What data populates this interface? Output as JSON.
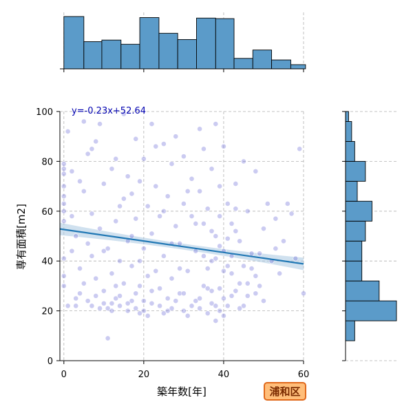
{
  "chart_data": {
    "type": "scatter",
    "xlabel": "築年数[年]",
    "ylabel": "専有面積[m2]",
    "xlim": [
      -1,
      60
    ],
    "ylim": [
      0,
      100
    ],
    "x_ticks": [
      0,
      20,
      40,
      60
    ],
    "y_ticks": [
      0,
      20,
      40,
      60,
      80,
      100
    ],
    "grid": true,
    "regression": {
      "label": "y=-0.23x+52.64",
      "slope": -0.23,
      "intercept": 52.64,
      "x_range": [
        -1,
        60
      ],
      "ci_halfwidth_ends": 2.5,
      "ci_halfwidth_mid": 1.2
    },
    "badge_label": "浦和区",
    "colors": {
      "points": "#6a6ad6",
      "line": "#1f77b4",
      "ci_band": "#a9c8e2",
      "bars": "#5b9bc9",
      "equation": "#0000b0",
      "badge_fill": "#ffbe7a",
      "badge_border": "#e0681a"
    },
    "points": [
      [
        0,
        30
      ],
      [
        0,
        34
      ],
      [
        0,
        41
      ],
      [
        0,
        56
      ],
      [
        0,
        60
      ],
      [
        0,
        63
      ],
      [
        0,
        66
      ],
      [
        0,
        70
      ],
      [
        0,
        75
      ],
      [
        0,
        77
      ],
      [
        0,
        79
      ],
      [
        1,
        92
      ],
      [
        2,
        76
      ],
      [
        2,
        58
      ],
      [
        2,
        44
      ],
      [
        3,
        25
      ],
      [
        3,
        22
      ],
      [
        4,
        27
      ],
      [
        4,
        72
      ],
      [
        4,
        37
      ],
      [
        5,
        96
      ],
      [
        5,
        31
      ],
      [
        6,
        83
      ],
      [
        6,
        47
      ],
      [
        6,
        24
      ],
      [
        7,
        22
      ],
      [
        7,
        59
      ],
      [
        7,
        42
      ],
      [
        8,
        88
      ],
      [
        8,
        26
      ],
      [
        8,
        33
      ],
      [
        9,
        95
      ],
      [
        9,
        21
      ],
      [
        9,
        53
      ],
      [
        10,
        71
      ],
      [
        10,
        28
      ],
      [
        10,
        44
      ],
      [
        11,
        9
      ],
      [
        11,
        21
      ],
      [
        12,
        77
      ],
      [
        12,
        35
      ],
      [
        12,
        23
      ],
      [
        13,
        81
      ],
      [
        13,
        56
      ],
      [
        13,
        25
      ],
      [
        14,
        22
      ],
      [
        14,
        62
      ],
      [
        14,
        40
      ],
      [
        15,
        99
      ],
      [
        15,
        31
      ],
      [
        16,
        74
      ],
      [
        16,
        20
      ],
      [
        16,
        48
      ],
      [
        17,
        67
      ],
      [
        17,
        24
      ],
      [
        17,
        38
      ],
      [
        18,
        89
      ],
      [
        18,
        21
      ],
      [
        18,
        57
      ],
      [
        19,
        30
      ],
      [
        19,
        72
      ],
      [
        19,
        19
      ],
      [
        20,
        81
      ],
      [
        20,
        45
      ],
      [
        20,
        24
      ],
      [
        21,
        62
      ],
      [
        21,
        18
      ],
      [
        22,
        95
      ],
      [
        22,
        28
      ],
      [
        22,
        51
      ],
      [
        23,
        36
      ],
      [
        23,
        70
      ],
      [
        24,
        22
      ],
      [
        24,
        58
      ],
      [
        25,
        87
      ],
      [
        25,
        19
      ],
      [
        25,
        42
      ],
      [
        26,
        66
      ],
      [
        26,
        25
      ],
      [
        27,
        79
      ],
      [
        27,
        33
      ],
      [
        27,
        21
      ],
      [
        28,
        54
      ],
      [
        28,
        90
      ],
      [
        29,
        27
      ],
      [
        29,
        47
      ],
      [
        30,
        63
      ],
      [
        30,
        20
      ],
      [
        30,
        82
      ],
      [
        31,
        36
      ],
      [
        31,
        18
      ],
      [
        32,
        58
      ],
      [
        32,
        73
      ],
      [
        33,
        24
      ],
      [
        33,
        44
      ],
      [
        34,
        93
      ],
      [
        34,
        68
      ],
      [
        34,
        21
      ],
      [
        35,
        30
      ],
      [
        35,
        55
      ],
      [
        35,
        85
      ],
      [
        36,
        19
      ],
      [
        36,
        61
      ],
      [
        37,
        40
      ],
      [
        37,
        77
      ],
      [
        37,
        23
      ],
      [
        38,
        95
      ],
      [
        38,
        50
      ],
      [
        38,
        16
      ],
      [
        39,
        29
      ],
      [
        39,
        70
      ],
      [
        39,
        20
      ],
      [
        40,
        86
      ],
      [
        40,
        44
      ],
      [
        40,
        25
      ],
      [
        41,
        63
      ],
      [
        41,
        22
      ],
      [
        42,
        55
      ],
      [
        42,
        35
      ],
      [
        43,
        71
      ],
      [
        43,
        28
      ],
      [
        44,
        48
      ],
      [
        45,
        80
      ],
      [
        45,
        38
      ],
      [
        46,
        26
      ],
      [
        46,
        60
      ],
      [
        47,
        43
      ],
      [
        48,
        34
      ],
      [
        48,
        76
      ],
      [
        49,
        30
      ],
      [
        50,
        53
      ],
      [
        50,
        24
      ],
      [
        51,
        63
      ],
      [
        52,
        40
      ],
      [
        53,
        57
      ],
      [
        54,
        35
      ],
      [
        55,
        48
      ],
      [
        56,
        63
      ],
      [
        57,
        59
      ],
      [
        59,
        85
      ],
      [
        60,
        27
      ],
      [
        1,
        22
      ],
      [
        3,
        50
      ],
      [
        5,
        68
      ],
      [
        7,
        85
      ],
      [
        11,
        45
      ],
      [
        13,
        30
      ],
      [
        15,
        65
      ],
      [
        17,
        50
      ],
      [
        19,
        40
      ],
      [
        21,
        34
      ],
      [
        23,
        86
      ],
      [
        25,
        60
      ],
      [
        27,
        47
      ],
      [
        29,
        37
      ],
      [
        31,
        68
      ],
      [
        33,
        55
      ],
      [
        35,
        42
      ],
      [
        37,
        28
      ],
      [
        39,
        46
      ],
      [
        41,
        38
      ],
      [
        43,
        52
      ],
      [
        45,
        22
      ],
      [
        47,
        37
      ],
      [
        49,
        43
      ],
      [
        53,
        45
      ],
      [
        58,
        41
      ],
      [
        10,
        23
      ],
      [
        12,
        20
      ],
      [
        14,
        26
      ],
      [
        16,
        23
      ],
      [
        18,
        27
      ],
      [
        20,
        20
      ],
      [
        22,
        23
      ],
      [
        24,
        29
      ],
      [
        26,
        20
      ],
      [
        28,
        24
      ],
      [
        30,
        27
      ],
      [
        32,
        22
      ],
      [
        34,
        25
      ],
      [
        36,
        29
      ],
      [
        38,
        22
      ],
      [
        40,
        18
      ],
      [
        42,
        26
      ],
      [
        44,
        21
      ],
      [
        46,
        31
      ],
      [
        48,
        27
      ],
      [
        36,
        37
      ],
      [
        38,
        41
      ],
      [
        40,
        36
      ],
      [
        42,
        42
      ],
      [
        44,
        31
      ],
      [
        37,
        52
      ],
      [
        39,
        58
      ],
      [
        41,
        49
      ],
      [
        43,
        61
      ]
    ],
    "marginal_x": {
      "bin_edges": [
        0,
        5,
        9.5,
        14.3,
        19,
        23.8,
        28.5,
        33.2,
        38,
        42.6,
        47.3,
        52,
        56.8,
        60.5
      ],
      "counts": [
        1.0,
        0.52,
        0.55,
        0.47,
        0.98,
        0.68,
        0.56,
        0.97,
        0.96,
        0.2,
        0.36,
        0.17,
        0.08
      ]
    },
    "marginal_y": {
      "bin_edges": [
        8,
        16,
        24,
        32,
        40,
        48,
        56,
        64,
        72,
        80,
        88,
        96,
        100
      ],
      "counts": [
        0.18,
        1.0,
        0.66,
        0.32,
        0.32,
        0.39,
        0.52,
        0.23,
        0.39,
        0.18,
        0.12,
        0.06
      ]
    }
  }
}
